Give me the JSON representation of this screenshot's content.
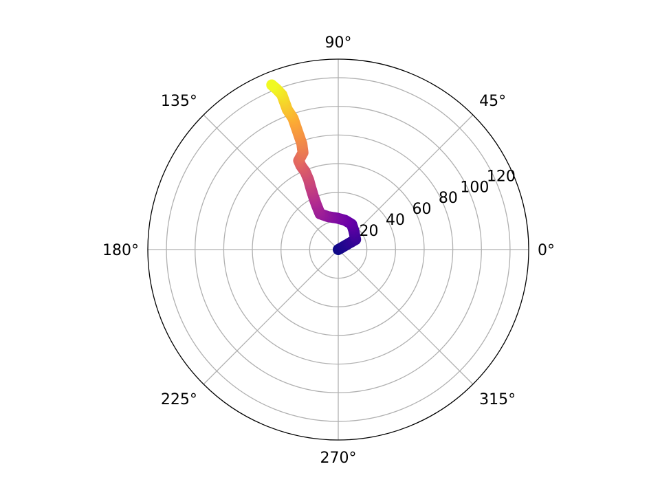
{
  "chart_data": {
    "type": "scatter",
    "projection": "polar",
    "title": "",
    "angle_unit": "degrees",
    "theta_ticks": [
      {
        "value": 0,
        "label": "0°"
      },
      {
        "value": 45,
        "label": "45°"
      },
      {
        "value": 90,
        "label": "90°"
      },
      {
        "value": 135,
        "label": "135°"
      },
      {
        "value": 180,
        "label": "180°"
      },
      {
        "value": 225,
        "label": "225°"
      },
      {
        "value": 270,
        "label": "270°"
      },
      {
        "value": 315,
        "label": "315°"
      }
    ],
    "r_ticks": [
      {
        "value": 20,
        "label": "20"
      },
      {
        "value": 40,
        "label": "40"
      },
      {
        "value": 60,
        "label": "60"
      },
      {
        "value": 80,
        "label": "80"
      },
      {
        "value": 100,
        "label": "100"
      },
      {
        "value": 120,
        "label": "120"
      }
    ],
    "r_label_angle_deg": 22.5,
    "rlim": [
      0,
      133
    ],
    "grid": true,
    "colormap": "plasma",
    "colormap_stops": [
      "#0d0887",
      "#6a00a8",
      "#b12a90",
      "#e16462",
      "#fca636",
      "#f0f921"
    ],
    "series": [
      {
        "points": [
          {
            "theta": 0,
            "r": 0
          },
          {
            "theta": 30,
            "r": 7
          },
          {
            "theta": 30,
            "r": 14
          },
          {
            "theta": 50,
            "r": 17
          },
          {
            "theta": 62,
            "r": 20
          },
          {
            "theta": 77,
            "r": 21
          },
          {
            "theta": 92,
            "r": 22
          },
          {
            "theta": 107,
            "r": 24
          },
          {
            "theta": 117,
            "r": 28
          },
          {
            "theta": 116,
            "r": 35
          },
          {
            "theta": 115,
            "r": 41
          },
          {
            "theta": 114,
            "r": 47
          },
          {
            "theta": 113,
            "r": 53
          },
          {
            "theta": 113,
            "r": 59
          },
          {
            "theta": 114,
            "r": 64
          },
          {
            "theta": 114,
            "r": 68
          },
          {
            "theta": 110,
            "r": 72
          },
          {
            "theta": 109,
            "r": 78
          },
          {
            "theta": 109,
            "r": 84
          },
          {
            "theta": 109,
            "r": 90
          },
          {
            "theta": 109,
            "r": 97
          },
          {
            "theta": 110,
            "r": 104
          },
          {
            "theta": 110,
            "r": 110
          },
          {
            "theta": 110,
            "r": 115
          },
          {
            "theta": 111,
            "r": 120
          },
          {
            "theta": 112,
            "r": 124
          }
        ]
      }
    ]
  }
}
